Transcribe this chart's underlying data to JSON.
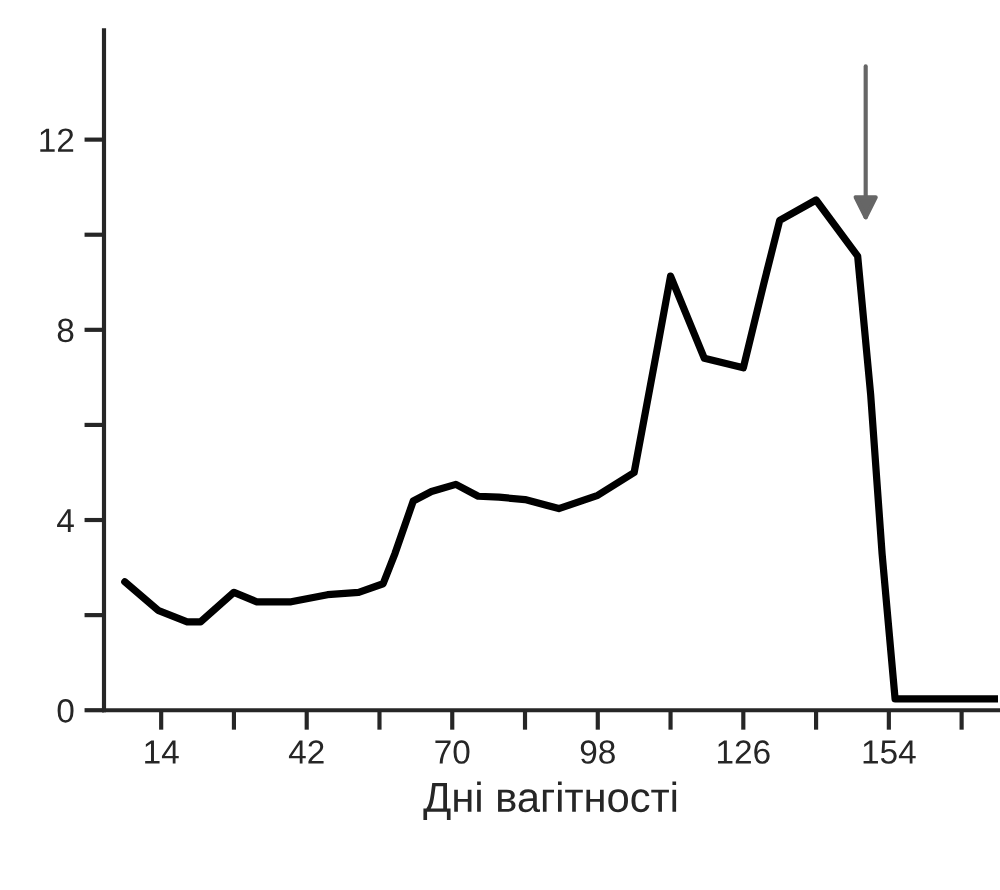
{
  "chart_data": {
    "type": "line",
    "xlabel": "Дні вагітності",
    "x": [
      7,
      13.4,
      19,
      21.6,
      28,
      32.4,
      39,
      46,
      52,
      56.7,
      59,
      62.5,
      66,
      70.7,
      75,
      79,
      84,
      90.5,
      98,
      105,
      109.6,
      112,
      118.5,
      126,
      130,
      133,
      140,
      148,
      150.5,
      152.7,
      155.2,
      175
    ],
    "series": [
      {
        "color": "#000000",
        "values": [
          2.7,
          2.1,
          1.86,
          1.86,
          2.48,
          2.28,
          2.28,
          2.43,
          2.48,
          2.66,
          3.3,
          4.4,
          4.6,
          4.75,
          4.5,
          4.48,
          4.43,
          4.24,
          4.52,
          5.0,
          7.7,
          9.13,
          7.4,
          7.2,
          9.0,
          10.3,
          10.73,
          9.55,
          6.64,
          3.29,
          0.24,
          0.24
        ]
      }
    ],
    "xlim": [
      3,
      175
    ],
    "ylim": [
      0,
      14.3
    ],
    "xticks": [
      14,
      {
        "value": 28,
        "label": null
      },
      42,
      {
        "value": 56,
        "label": null
      },
      70,
      {
        "value": 84,
        "label": null
      },
      98,
      {
        "value": 112,
        "label": null
      },
      126,
      {
        "value": 140,
        "label": null
      },
      154,
      {
        "value": 168,
        "label": null
      }
    ],
    "yticks": [
      0,
      {
        "value": 2,
        "label": null
      },
      4,
      {
        "value": 6,
        "label": null
      },
      8,
      {
        "value": 10,
        "label": null
      },
      12
    ],
    "grid": false,
    "legend": false,
    "marker": "none",
    "line_style": "solid"
  }
}
